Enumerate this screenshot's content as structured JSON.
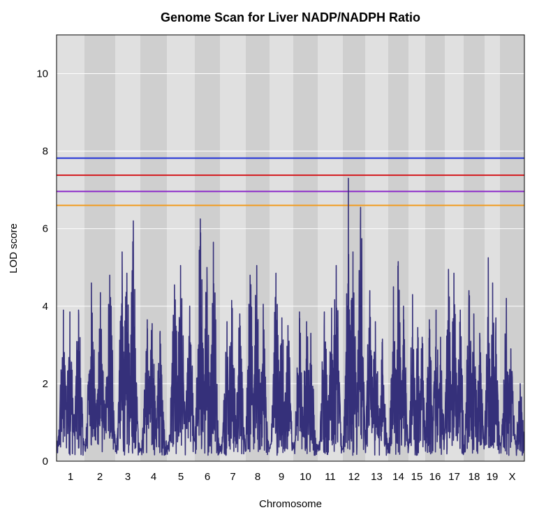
{
  "chart_data": {
    "type": "line",
    "title": "Genome Scan for Liver NADP/NADPH Ratio",
    "xlabel": "Chromosome",
    "ylabel": "LOD score",
    "ylim": [
      0,
      11
    ],
    "y_ticks": [
      0,
      2,
      4,
      6,
      8,
      10
    ],
    "grid": true,
    "chromosomes": [
      "1",
      "2",
      "3",
      "4",
      "5",
      "6",
      "7",
      "8",
      "9",
      "10",
      "11",
      "12",
      "13",
      "14",
      "15",
      "16",
      "17",
      "18",
      "19",
      "X"
    ],
    "thresholds": [
      {
        "value": 7.82,
        "color": "#1f2fd6"
      },
      {
        "value": 7.38,
        "color": "#d4171c"
      },
      {
        "value": 6.96,
        "color": "#8a27c9"
      },
      {
        "value": 6.6,
        "color": "#f29b1c"
      }
    ],
    "series": [
      {
        "color": "#35307a",
        "peaks_by_chromosome": [
          {
            "chr": "1",
            "peaks": [
              3.9,
              3.85,
              3.9
            ]
          },
          {
            "chr": "2",
            "peaks": [
              4.6,
              4.35,
              4.8
            ]
          },
          {
            "chr": "3",
            "peaks": [
              5.4,
              4.85,
              6.2
            ]
          },
          {
            "chr": "4",
            "peaks": [
              3.65,
              3.55,
              3.35
            ]
          },
          {
            "chr": "5",
            "peaks": [
              4.55,
              5.05,
              4.0
            ]
          },
          {
            "chr": "6",
            "peaks": [
              6.25,
              5.0,
              5.65
            ]
          },
          {
            "chr": "7",
            "peaks": [
              3.6,
              4.15,
              3.8
            ]
          },
          {
            "chr": "8",
            "peaks": [
              4.8,
              5.05,
              4.05
            ]
          },
          {
            "chr": "9",
            "peaks": [
              4.85,
              3.7,
              3.5
            ]
          },
          {
            "chr": "10",
            "peaks": [
              3.85,
              3.6,
              3.3
            ]
          },
          {
            "chr": "11",
            "peaks": [
              3.85,
              3.95,
              5.05
            ]
          },
          {
            "chr": "12",
            "peaks": [
              7.3,
              5.4,
              6.55
            ]
          },
          {
            "chr": "13",
            "peaks": [
              4.4,
              3.6,
              3.15
            ]
          },
          {
            "chr": "14",
            "peaks": [
              4.5,
              5.15,
              4.0
            ]
          },
          {
            "chr": "15",
            "peaks": [
              4.3,
              3.45,
              3.2
            ]
          },
          {
            "chr": "16",
            "peaks": [
              3.65,
              3.9,
              3.2
            ]
          },
          {
            "chr": "17",
            "peaks": [
              4.95,
              4.85,
              3.9
            ]
          },
          {
            "chr": "18",
            "peaks": [
              4.4,
              3.8,
              3.3
            ]
          },
          {
            "chr": "19",
            "peaks": [
              5.25,
              4.6,
              3.7
            ]
          },
          {
            "chr": "X",
            "peaks": [
              4.2,
              2.9,
              2.0
            ]
          }
        ]
      }
    ]
  }
}
